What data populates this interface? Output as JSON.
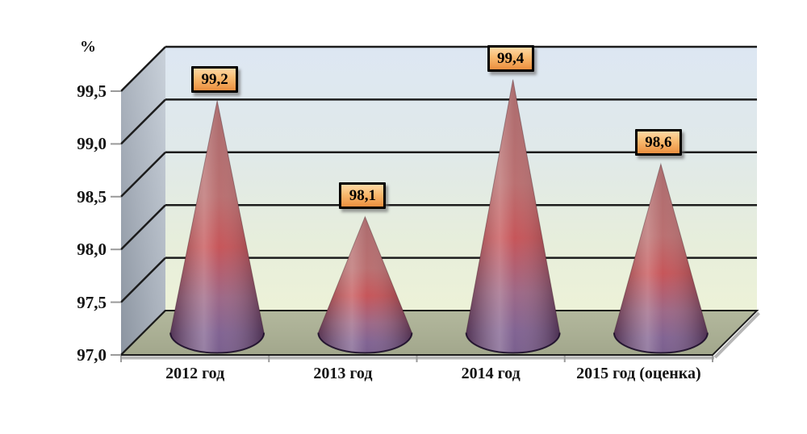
{
  "chart_data": {
    "type": "bar",
    "variant": "3d-cone",
    "title": "",
    "ylabel": "%",
    "xlabel": "",
    "categories": [
      "2012 год",
      "2013 год",
      "2014 год",
      "2015 год (оценка)"
    ],
    "values": [
      99.2,
      98.1,
      99.4,
      98.6
    ],
    "value_labels": [
      "99,2",
      "98,1",
      "99,4",
      "98,6"
    ],
    "ylim": [
      97.0,
      99.5
    ],
    "ytick_step": 0.5,
    "yticks": [
      99.5,
      99.0,
      98.5,
      98.0,
      97.5,
      97.0
    ],
    "ytick_labels": [
      "99,5",
      "99,0",
      "98,5",
      "98,0",
      "97,5",
      "97,0"
    ],
    "grid": true,
    "legend": "none",
    "colors": {
      "cone_red": "#b4575b",
      "cone_highlight": "#cf8a8b",
      "cone_purple": "#6e5186",
      "callout_top": "#fdd9a6",
      "callout_bottom": "#ec8f3f",
      "callout_border": "#000000",
      "back_wall_top": "#dde7f3",
      "back_wall_bottom": "#edf2d8",
      "side_wall": "#9aa3ae",
      "floor": "#abb094",
      "gridline": "#1c1c1c"
    }
  }
}
